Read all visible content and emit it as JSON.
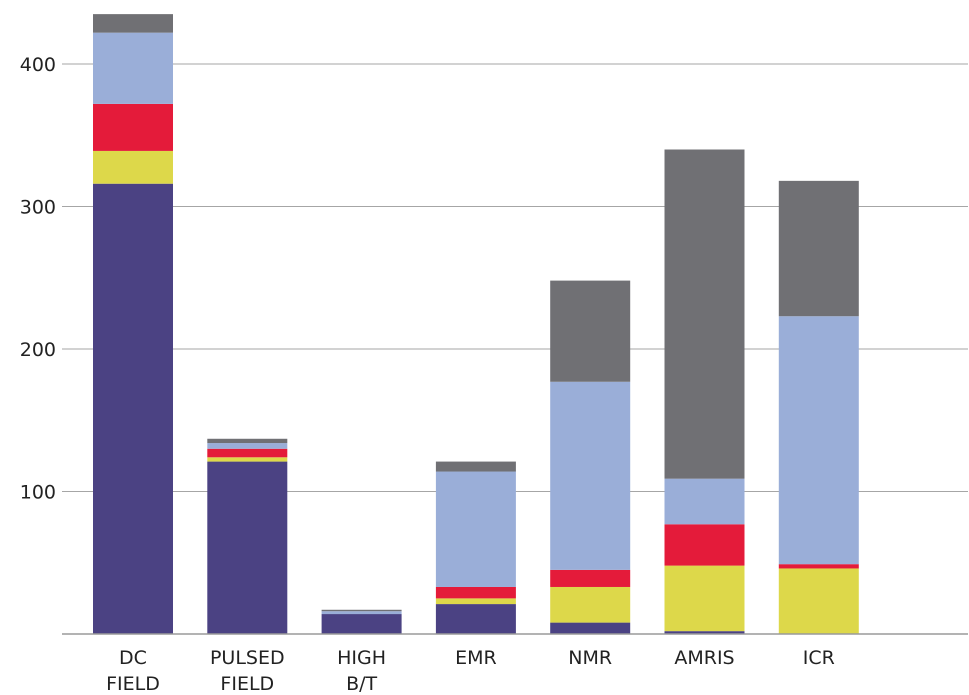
{
  "chart_data": {
    "type": "bar",
    "stacked": true,
    "categories": [
      [
        "DC",
        "FIELD"
      ],
      [
        "PULSED",
        "FIELD"
      ],
      [
        "HIGH",
        "B/T"
      ],
      [
        "EMR"
      ],
      [
        "NMR"
      ],
      [
        "AMRIS"
      ],
      [
        "ICR"
      ]
    ],
    "series": [
      {
        "color": "#4b4283",
        "values": [
          316,
          121,
          14,
          21,
          8,
          2,
          0
        ]
      },
      {
        "color": "#ddd84a",
        "values": [
          23,
          3,
          0,
          4,
          25,
          46,
          46
        ]
      },
      {
        "color": "#e41b3a",
        "values": [
          33,
          6,
          0,
          8,
          12,
          29,
          3
        ]
      },
      {
        "color": "#9aaed8",
        "values": [
          50,
          4,
          2,
          81,
          132,
          32,
          174
        ]
      },
      {
        "color": "#707074",
        "values": [
          13,
          3,
          1,
          7,
          71,
          231,
          95
        ]
      }
    ],
    "yticks": [
      100,
      200,
      300,
      400
    ],
    "ylim": [
      0,
      440
    ],
    "grid": true,
    "legend": "none",
    "title": "",
    "xlabel": "",
    "ylabel": ""
  }
}
